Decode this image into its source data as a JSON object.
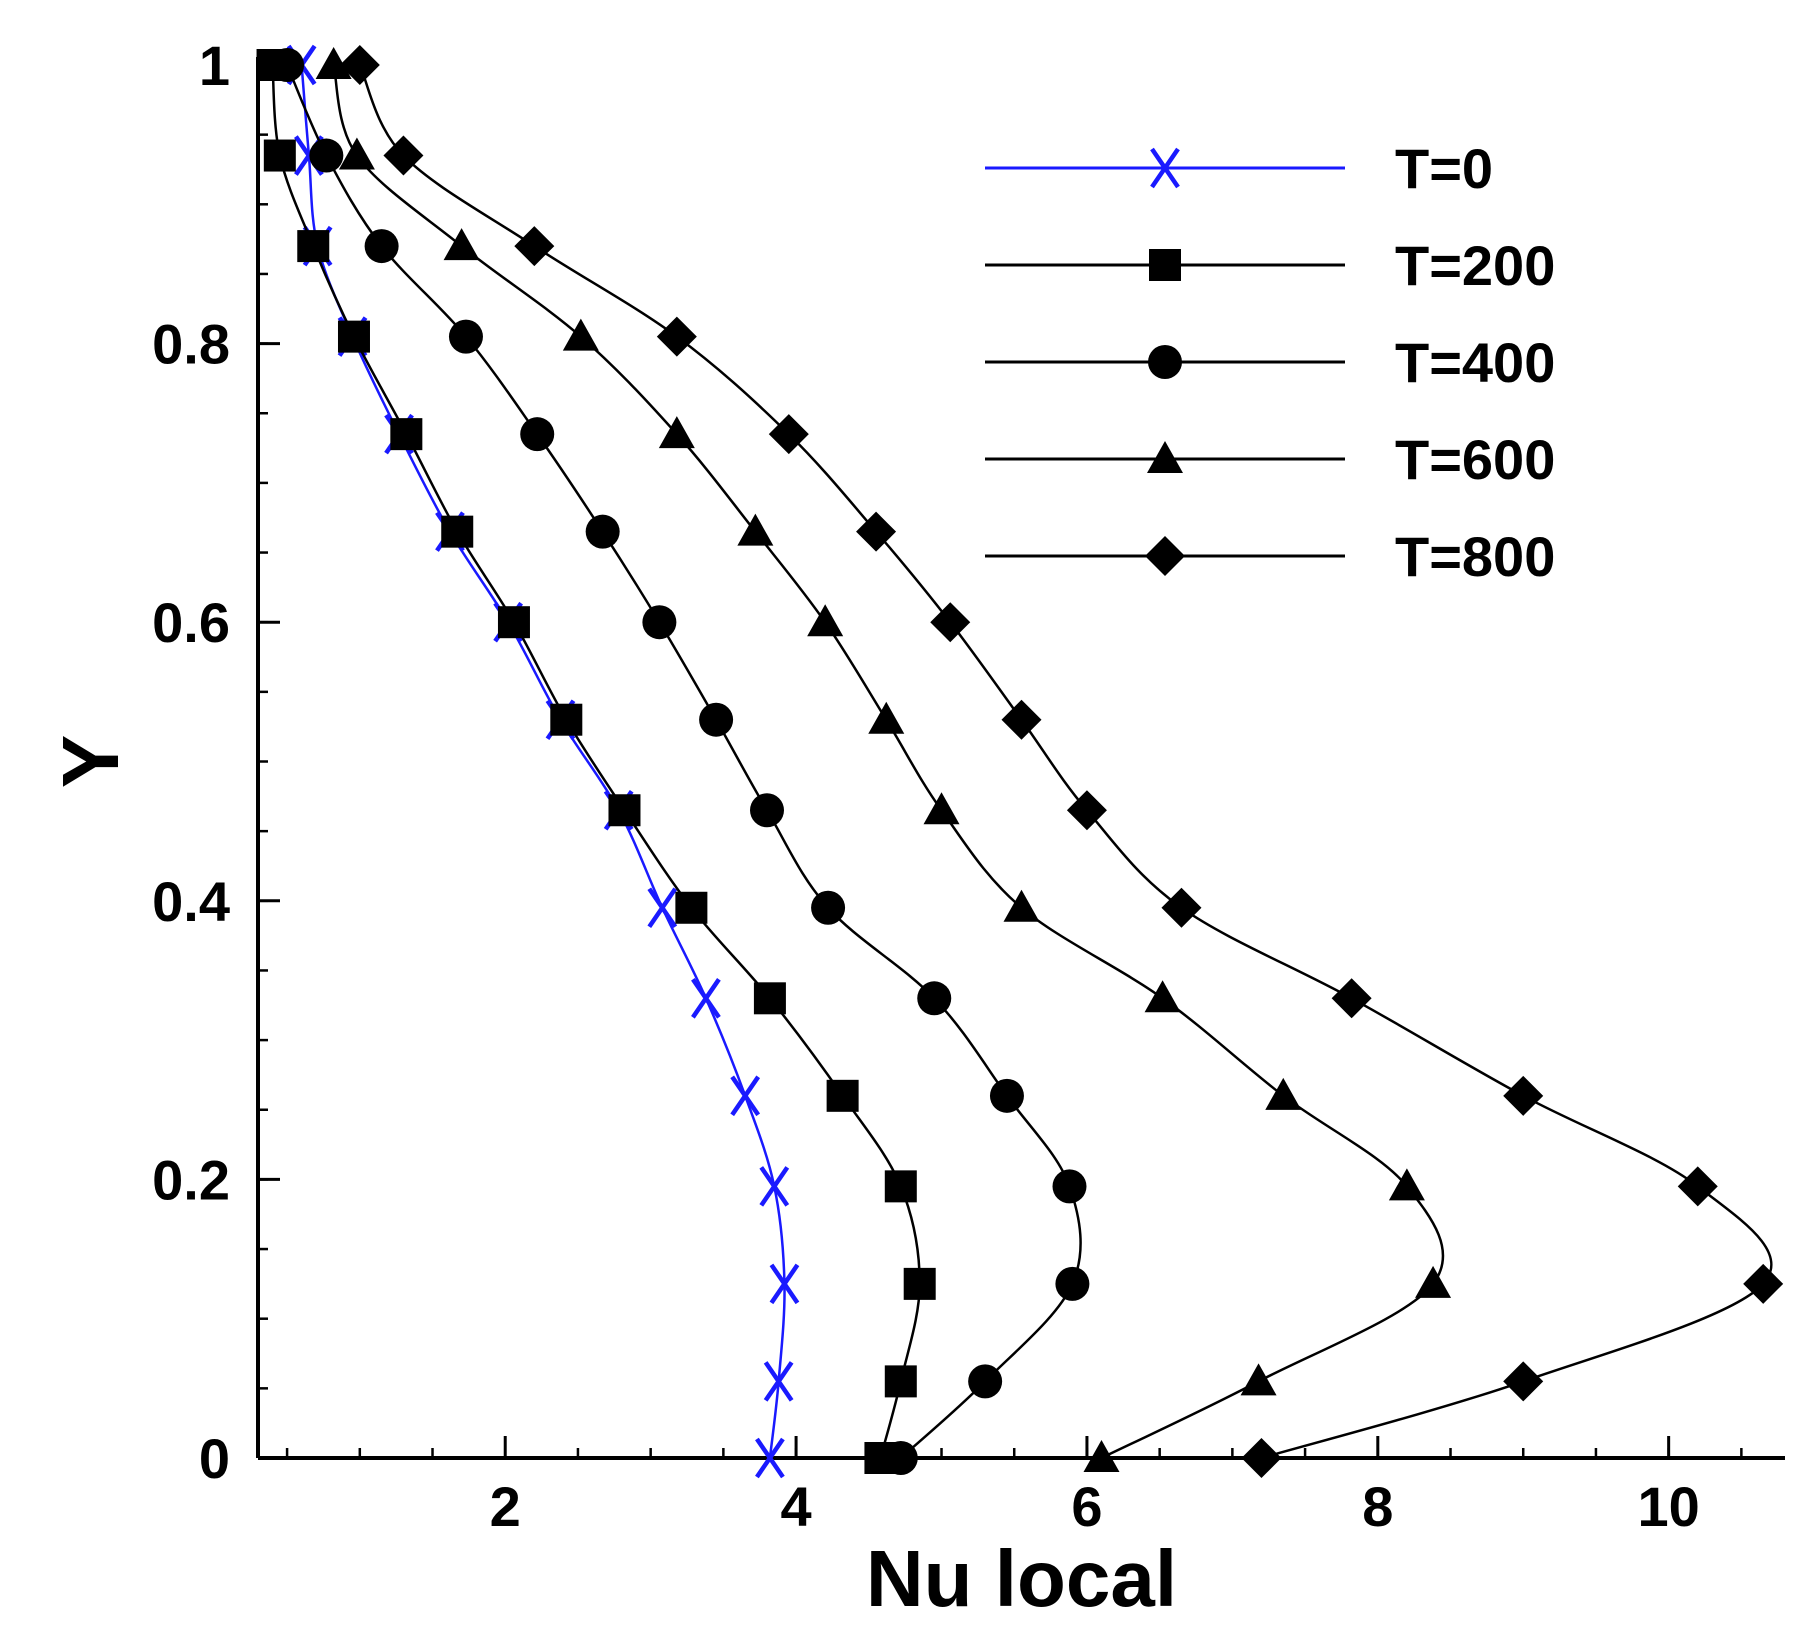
{
  "chart_data": {
    "type": "line",
    "title": "",
    "xlabel": "Nu local",
    "ylabel": "Y",
    "xlim": [
      0.3,
      10.8
    ],
    "ylim": [
      0,
      1
    ],
    "x_ticks": [
      2,
      4,
      6,
      8,
      10
    ],
    "x_tick_labels": [
      "2",
      "4",
      "6",
      "8",
      "10"
    ],
    "x_minor_step": 0.5,
    "y_ticks": [
      0,
      0.2,
      0.4,
      0.6,
      0.8,
      1
    ],
    "y_tick_labels": [
      "0",
      "0.2",
      "0.4",
      "0.6",
      "0.8",
      "1"
    ],
    "y_minor_step": 0.05,
    "grid": false,
    "legend_position": "top-right",
    "series": [
      {
        "name": "T=0",
        "color": "#1a1aff",
        "marker": "x",
        "points": [
          {
            "x": 3.82,
            "y": 0.0
          },
          {
            "x": 3.88,
            "y": 0.055
          },
          {
            "x": 3.92,
            "y": 0.125
          },
          {
            "x": 3.85,
            "y": 0.195
          },
          {
            "x": 3.65,
            "y": 0.26
          },
          {
            "x": 3.38,
            "y": 0.33
          },
          {
            "x": 3.08,
            "y": 0.395
          },
          {
            "x": 2.78,
            "y": 0.465
          },
          {
            "x": 2.38,
            "y": 0.53
          },
          {
            "x": 2.02,
            "y": 0.6
          },
          {
            "x": 1.62,
            "y": 0.665
          },
          {
            "x": 1.27,
            "y": 0.735
          },
          {
            "x": 0.95,
            "y": 0.805
          },
          {
            "x": 0.71,
            "y": 0.87
          },
          {
            "x": 0.65,
            "y": 0.935
          },
          {
            "x": 0.6,
            "y": 1.0
          }
        ]
      },
      {
        "name": "T=200",
        "color": "#000000",
        "marker": "square",
        "points": [
          {
            "x": 4.58,
            "y": 0.0
          },
          {
            "x": 4.72,
            "y": 0.055
          },
          {
            "x": 4.85,
            "y": 0.125
          },
          {
            "x": 4.72,
            "y": 0.195
          },
          {
            "x": 4.32,
            "y": 0.26
          },
          {
            "x": 3.82,
            "y": 0.33
          },
          {
            "x": 3.28,
            "y": 0.395
          },
          {
            "x": 2.82,
            "y": 0.465
          },
          {
            "x": 2.42,
            "y": 0.53
          },
          {
            "x": 2.06,
            "y": 0.6
          },
          {
            "x": 1.67,
            "y": 0.665
          },
          {
            "x": 1.32,
            "y": 0.735
          },
          {
            "x": 0.96,
            "y": 0.805
          },
          {
            "x": 0.68,
            "y": 0.87
          },
          {
            "x": 0.45,
            "y": 0.935
          },
          {
            "x": 0.4,
            "y": 1.0
          }
        ]
      },
      {
        "name": "T=400",
        "color": "#000000",
        "marker": "circle",
        "points": [
          {
            "x": 4.72,
            "y": 0.0
          },
          {
            "x": 5.3,
            "y": 0.055
          },
          {
            "x": 5.9,
            "y": 0.125
          },
          {
            "x": 5.88,
            "y": 0.195
          },
          {
            "x": 5.45,
            "y": 0.26
          },
          {
            "x": 4.95,
            "y": 0.33
          },
          {
            "x": 4.22,
            "y": 0.395
          },
          {
            "x": 3.8,
            "y": 0.465
          },
          {
            "x": 3.45,
            "y": 0.53
          },
          {
            "x": 3.06,
            "y": 0.6
          },
          {
            "x": 2.67,
            "y": 0.665
          },
          {
            "x": 2.22,
            "y": 0.735
          },
          {
            "x": 1.73,
            "y": 0.805
          },
          {
            "x": 1.15,
            "y": 0.87
          },
          {
            "x": 0.77,
            "y": 0.935
          },
          {
            "x": 0.5,
            "y": 1.0
          }
        ]
      },
      {
        "name": "T=600",
        "color": "#000000",
        "marker": "triangle",
        "points": [
          {
            "x": 6.1,
            "y": 0.0
          },
          {
            "x": 7.18,
            "y": 0.055
          },
          {
            "x": 8.38,
            "y": 0.125
          },
          {
            "x": 8.2,
            "y": 0.195
          },
          {
            "x": 7.35,
            "y": 0.26
          },
          {
            "x": 6.52,
            "y": 0.33
          },
          {
            "x": 5.55,
            "y": 0.395
          },
          {
            "x": 5.0,
            "y": 0.465
          },
          {
            "x": 4.62,
            "y": 0.53
          },
          {
            "x": 4.2,
            "y": 0.6
          },
          {
            "x": 3.72,
            "y": 0.665
          },
          {
            "x": 3.18,
            "y": 0.735
          },
          {
            "x": 2.52,
            "y": 0.805
          },
          {
            "x": 1.7,
            "y": 0.87
          },
          {
            "x": 0.98,
            "y": 0.935
          },
          {
            "x": 0.82,
            "y": 1.0
          }
        ]
      },
      {
        "name": "T=800",
        "color": "#000000",
        "marker": "diamond",
        "points": [
          {
            "x": 7.2,
            "y": 0.0
          },
          {
            "x": 9.0,
            "y": 0.055
          },
          {
            "x": 10.65,
            "y": 0.125
          },
          {
            "x": 10.2,
            "y": 0.195
          },
          {
            "x": 9.0,
            "y": 0.26
          },
          {
            "x": 7.82,
            "y": 0.33
          },
          {
            "x": 6.65,
            "y": 0.395
          },
          {
            "x": 6.0,
            "y": 0.465
          },
          {
            "x": 5.55,
            "y": 0.53
          },
          {
            "x": 5.06,
            "y": 0.6
          },
          {
            "x": 4.55,
            "y": 0.665
          },
          {
            "x": 3.95,
            "y": 0.735
          },
          {
            "x": 3.18,
            "y": 0.805
          },
          {
            "x": 2.2,
            "y": 0.87
          },
          {
            "x": 1.3,
            "y": 0.935
          },
          {
            "x": 1.0,
            "y": 1.0
          }
        ]
      }
    ]
  }
}
